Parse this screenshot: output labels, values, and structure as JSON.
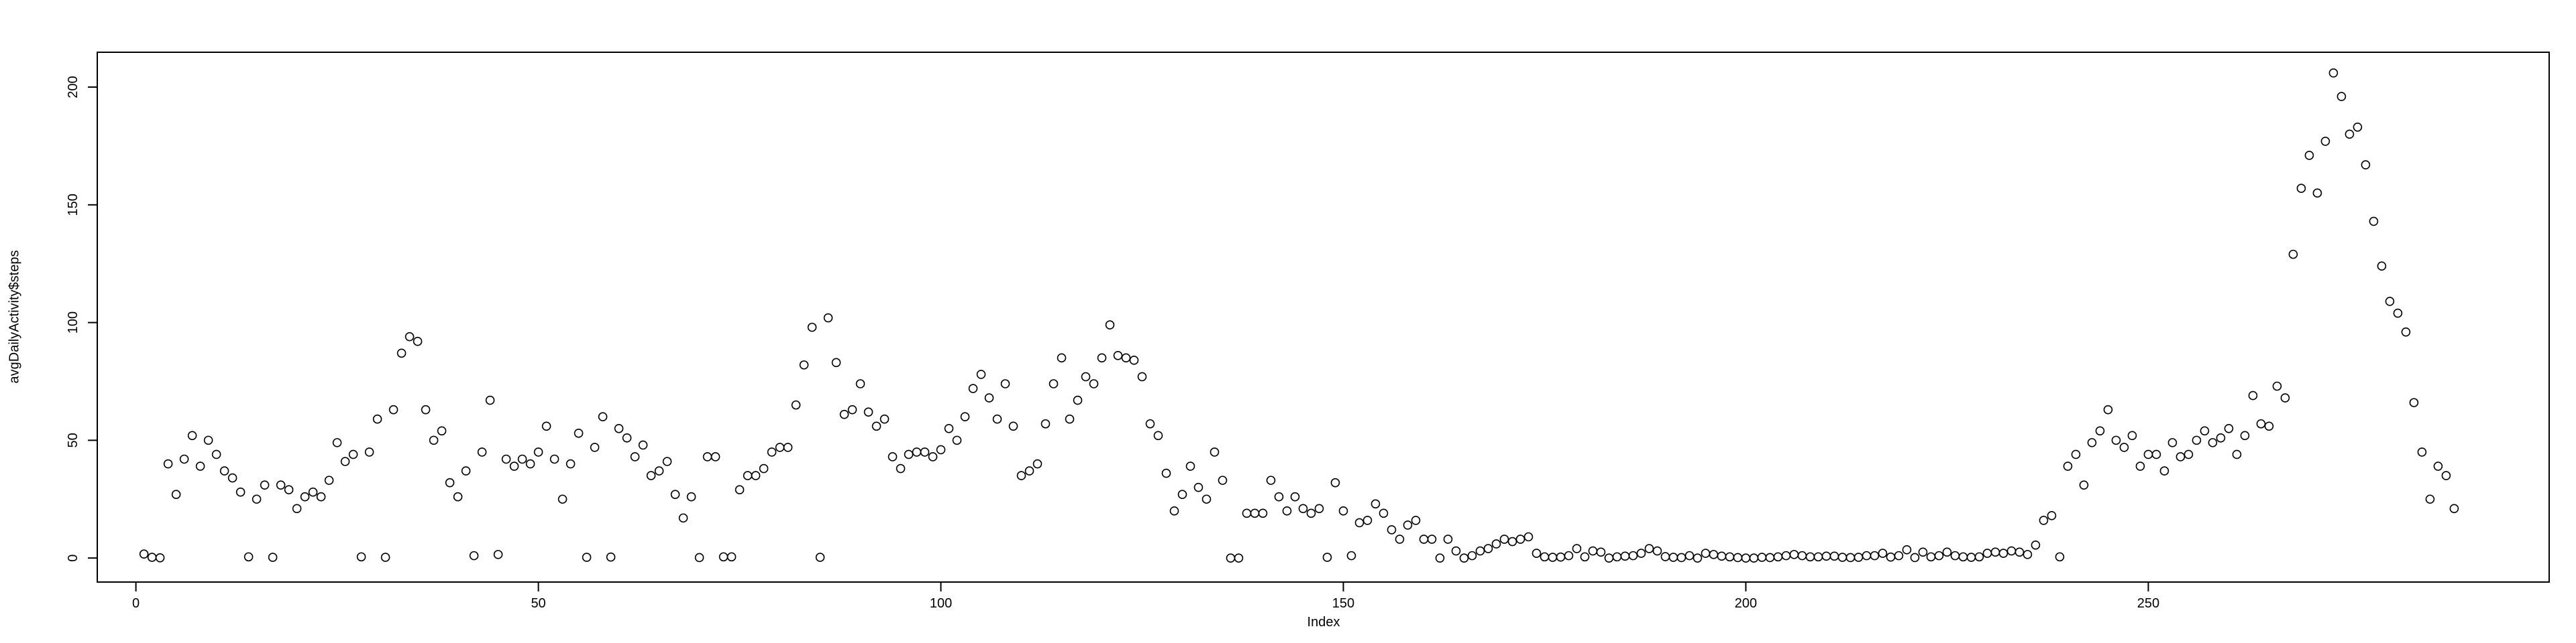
{
  "chart_data": {
    "type": "scatter",
    "x_label": "Index",
    "y_label": "avgDailyActivity$steps",
    "color": "#000000",
    "xlim": [
      -4.8,
      299.8
    ],
    "ylim": [
      -10.2,
      214.8
    ],
    "xticks": [
      0,
      50,
      100,
      150,
      200,
      250
    ],
    "yticks": [
      0,
      50,
      100,
      150,
      200
    ],
    "values": [
      1.7,
      0.3,
      0.1,
      40,
      27,
      42,
      52,
      39,
      50,
      44,
      37,
      34,
      28,
      0.5,
      25,
      31,
      0.3,
      31,
      29,
      21,
      26,
      28,
      26,
      33,
      49,
      41,
      44,
      0.5,
      45,
      59,
      0.3,
      63,
      87,
      94,
      92,
      63,
      50,
      54,
      32,
      26,
      37,
      1,
      45,
      67,
      1.5,
      42,
      39,
      42,
      40,
      45,
      56,
      42,
      25,
      40,
      53,
      0.3,
      47,
      60,
      0.4,
      55,
      51,
      43,
      48,
      35,
      37,
      41,
      27,
      17,
      26,
      0.2,
      43,
      43,
      0.5,
      0.5,
      29,
      35,
      35,
      38,
      45,
      47,
      47,
      65,
      82,
      98,
      0.3,
      102,
      83,
      61,
      63,
      74,
      62,
      56,
      59,
      43,
      38,
      44,
      45,
      45,
      43,
      46,
      55,
      50,
      60,
      72,
      78,
      68,
      59,
      74,
      56,
      35,
      37,
      40,
      57,
      74,
      85,
      59,
      67,
      77,
      74,
      85,
      99,
      86,
      85,
      84,
      77,
      57,
      52,
      36,
      20,
      27,
      39,
      30,
      25,
      45,
      33,
      0,
      0,
      19,
      19,
      19,
      33,
      26,
      20,
      26,
      21,
      19,
      21,
      0.3,
      32,
      20,
      1,
      15,
      16,
      23,
      19,
      12,
      8,
      14,
      16,
      8,
      8,
      0,
      8,
      3,
      0,
      1,
      3,
      4,
      6,
      8,
      7,
      8,
      9,
      2,
      0.5,
      0.3,
      0.4,
      1,
      4,
      0.5,
      3,
      2.5,
      0,
      0.5,
      0.8,
      1,
      2,
      4,
      3,
      0.6,
      0.3,
      0.2,
      1,
      0,
      2,
      1.5,
      0.8,
      0.5,
      0.2,
      0,
      0,
      0.3,
      0.2,
      0.5,
      1,
      1.5,
      1,
      0.5,
      0.5,
      0.8,
      0.8,
      0.3,
      0.2,
      0.3,
      1,
      1,
      2,
      0.4,
      1,
      3.5,
      0.2,
      2.5,
      0.5,
      1,
      2.5,
      1,
      0.5,
      0.3,
      0.5,
      2,
      2.5,
      2,
      3,
      2.5,
      1.5,
      5.5,
      16,
      18,
      0.5,
      39,
      44,
      31,
      49,
      54,
      63,
      50,
      47,
      52,
      39,
      44,
      44,
      37,
      49,
      43,
      44,
      50,
      54,
      49,
      51,
      55,
      44,
      52,
      69,
      57,
      56,
      73,
      68,
      129,
      157,
      171,
      155,
      177,
      206,
      196,
      180,
      183,
      167,
      143,
      124,
      109,
      104,
      96,
      66,
      45,
      25,
      39,
      35,
      21
    ]
  }
}
